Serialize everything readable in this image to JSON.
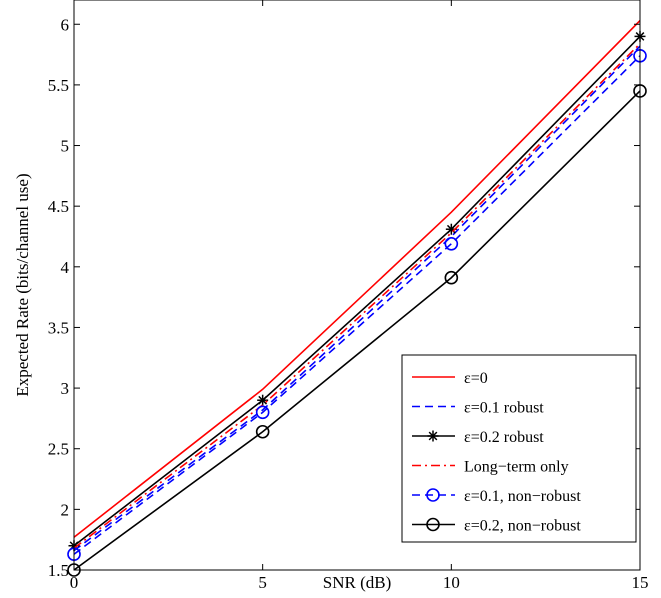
{
  "chart_data": {
    "type": "line",
    "title": "",
    "xlabel": "SNR (dB)",
    "ylabel": "Expected Rate (bits/channel use)",
    "xlim": [
      0,
      15
    ],
    "ylim": [
      1.5,
      6.2
    ],
    "xticks": [
      0,
      5,
      10,
      15
    ],
    "xtick_labels": [
      "0",
      "5",
      "10",
      "15"
    ],
    "yticks": [
      1.5,
      2,
      2.5,
      3,
      3.5,
      4,
      4.5,
      5,
      5.5,
      6
    ],
    "ytick_labels": [
      "1.5",
      "2",
      "2.5",
      "3",
      "3.5",
      "4",
      "4.5",
      "5",
      "5.5",
      "6"
    ],
    "grid": false,
    "legend_position": "bottom-right",
    "x": [
      0,
      5,
      10,
      15
    ],
    "series": [
      {
        "name": "ε=0",
        "values": [
          1.77,
          2.99,
          4.45,
          6.03
        ],
        "color": "#ff0000",
        "line_style": "solid",
        "marker": "none"
      },
      {
        "name": "ε=0.1 robust",
        "values": [
          1.66,
          2.82,
          4.25,
          5.82
        ],
        "color": "#0000ff",
        "line_style": "dashed",
        "marker": "none"
      },
      {
        "name": "ε=0.2 robust",
        "values": [
          1.7,
          2.9,
          4.31,
          5.9
        ],
        "color": "#000000",
        "line_style": "solid",
        "marker": "asterisk"
      },
      {
        "name": "Long−term only",
        "values": [
          1.68,
          2.86,
          4.28,
          5.84
        ],
        "color": "#ff0000",
        "line_style": "dashdot",
        "marker": "none"
      },
      {
        "name": "ε=0.1, non−robust",
        "values": [
          1.63,
          2.8,
          4.19,
          5.74
        ],
        "color": "#0000ff",
        "line_style": "dashed",
        "marker": "circle"
      },
      {
        "name": "ε=0.2, non−robust",
        "values": [
          1.5,
          2.64,
          3.91,
          5.45
        ],
        "color": "#000000",
        "line_style": "solid",
        "marker": "circle"
      }
    ]
  }
}
